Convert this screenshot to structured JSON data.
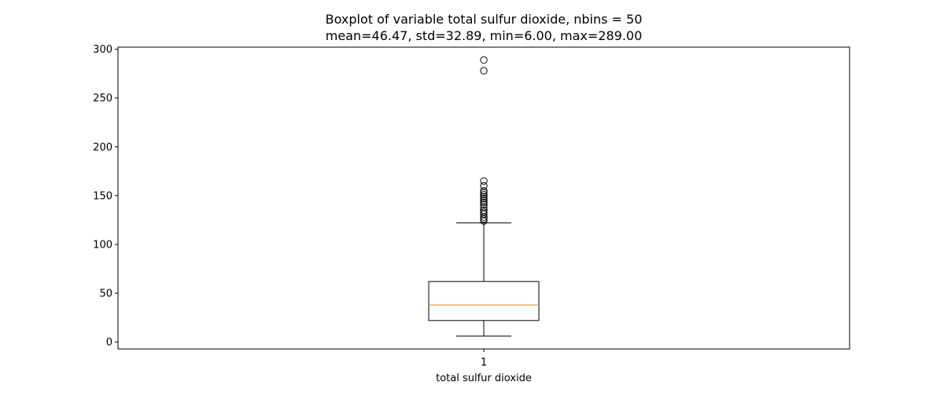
{
  "chart_data": {
    "type": "boxplot",
    "title": "Boxplot of variable total sulfur dioxide, nbins = 50",
    "subtitle": "mean=46.47, std=32.89, min=6.00, max=289.00",
    "xlabel": "total sulfur dioxide",
    "ylabel": "",
    "ylim": [
      -7.15,
      302.15
    ],
    "y_ticks": [
      0,
      50,
      100,
      150,
      200,
      250,
      300
    ],
    "x_ticks": [
      "1"
    ],
    "grid": false,
    "colors": {
      "box": "#000000",
      "median": "#ff7f0e",
      "outlier": "#000000"
    },
    "series": [
      {
        "category": "1",
        "whisker_low": 6,
        "q1": 22,
        "median": 38,
        "q3": 62,
        "whisker_high": 122,
        "outliers": [
          124,
          126,
          128,
          131,
          133,
          135,
          138,
          141,
          143,
          145,
          147,
          149,
          151,
          153,
          155,
          160,
          165,
          278,
          289
        ]
      }
    ]
  }
}
